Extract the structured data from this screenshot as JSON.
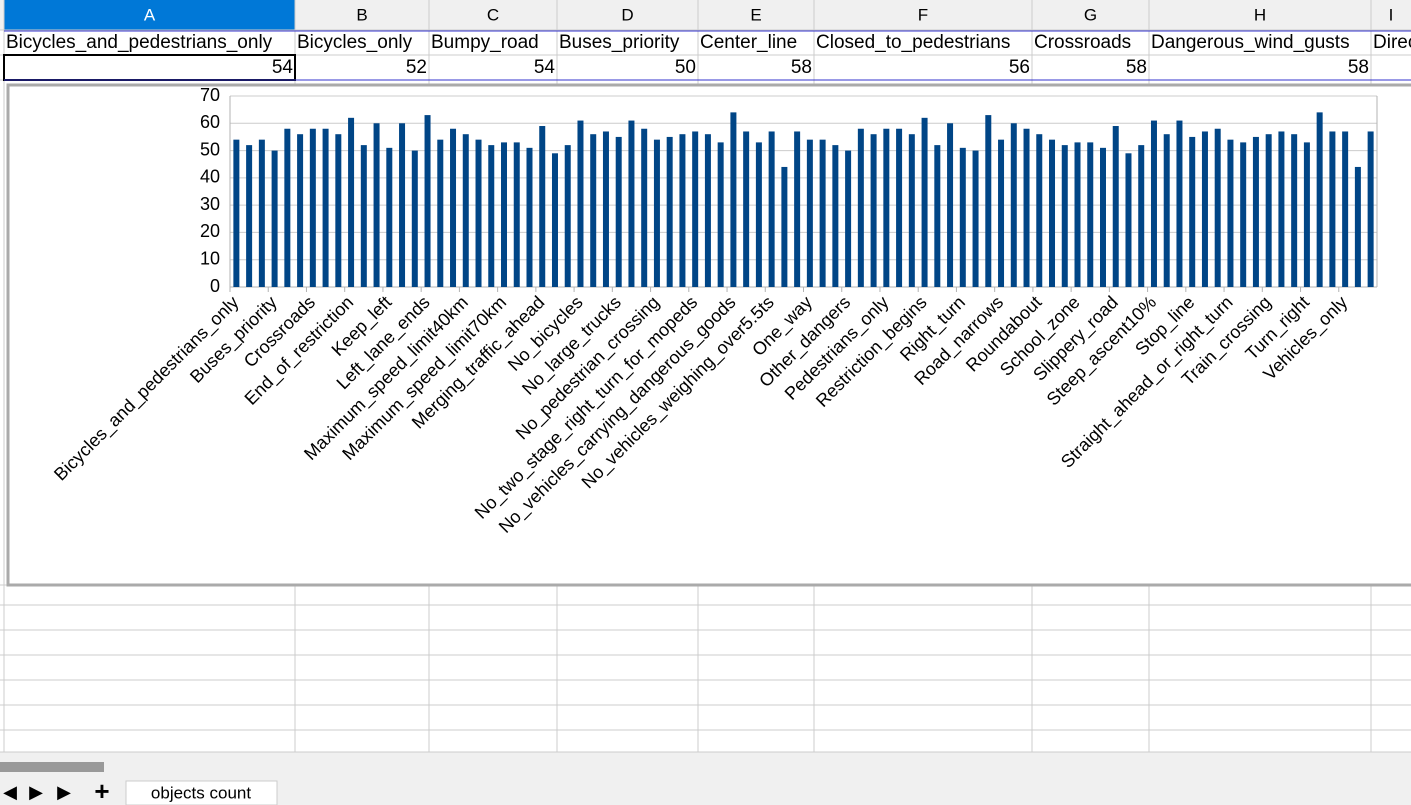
{
  "sheet": {
    "columns": [
      "A",
      "B",
      "C",
      "D",
      "E",
      "F",
      "G",
      "H",
      "I"
    ],
    "rows": [
      [
        "Bicycles_and_pedestrians_only",
        "Bicycles_only",
        "Bumpy_road",
        "Buses_priority",
        "Center_line",
        "Closed_to_pedestrians",
        "Crossroads",
        "Dangerous_wind_gusts",
        "Direc"
      ],
      [
        54,
        52,
        54,
        50,
        58,
        56,
        58,
        58
      ]
    ],
    "tab": "objects count"
  },
  "chart_data": {
    "type": "bar",
    "color": "#004586",
    "ylim": [
      0,
      70
    ],
    "yticks": [
      0,
      10,
      20,
      30,
      40,
      50,
      60,
      70
    ],
    "categories": [
      "Bicycles_and_pedestrians_only",
      null,
      null,
      "Buses_priority",
      null,
      null,
      "Crossroads",
      null,
      null,
      "End_of_restriction",
      null,
      null,
      "Keep_left",
      null,
      null,
      "Left_lane_ends",
      null,
      null,
      "Maximum_speed_limit40km",
      null,
      null,
      "Maximum_speed_limit70km",
      null,
      null,
      "Merging_traffic_ahead",
      null,
      null,
      "No_bicycles",
      null,
      null,
      "No_large_trucks",
      null,
      null,
      "No_pedestrian_crossing",
      null,
      null,
      "No_two_stage_right_turn_for_mopeds",
      null,
      null,
      "No_vehicles_carrying_dangerous_goods",
      null,
      null,
      "No_vehicles_weighing_over5.5ts",
      null,
      null,
      "One_way",
      null,
      null,
      "Other_dangers",
      null,
      null,
      "Pedestrians_only",
      null,
      null,
      "Restriction_begins",
      null,
      null,
      "Right_turn",
      null,
      null,
      "Road_narrows",
      null,
      null,
      "Roundabout",
      null,
      null,
      "School_zone",
      null,
      null,
      "Slippery_road",
      null,
      null,
      "Steep_ascent10%",
      null,
      null,
      "Stop_line",
      null,
      null,
      "Straight_ahead_or_right_turn",
      null,
      null,
      "Train_crossing",
      null,
      null,
      "Turn_right",
      null,
      null,
      "Vehicles_only",
      null,
      null
    ],
    "values": [
      54,
      52,
      54,
      50,
      58,
      56,
      58,
      58,
      56,
      62,
      52,
      60,
      51,
      60,
      50,
      63,
      54,
      58,
      56,
      54,
      52,
      53,
      53,
      51,
      59,
      49,
      52,
      61,
      56,
      57,
      55,
      61,
      58,
      54,
      55,
      56,
      57,
      56,
      53,
      64,
      57,
      53,
      57,
      44,
      57,
      54,
      54,
      52,
      50,
      58,
      56,
      58,
      58,
      56,
      62,
      52,
      60,
      51,
      50,
      63,
      54,
      60,
      58,
      56,
      54,
      52,
      53,
      53,
      51,
      59,
      49,
      52,
      61,
      56,
      61,
      55,
      57,
      58,
      54,
      53,
      55,
      56,
      57,
      56,
      53,
      64,
      57,
      57,
      44,
      57
    ]
  }
}
